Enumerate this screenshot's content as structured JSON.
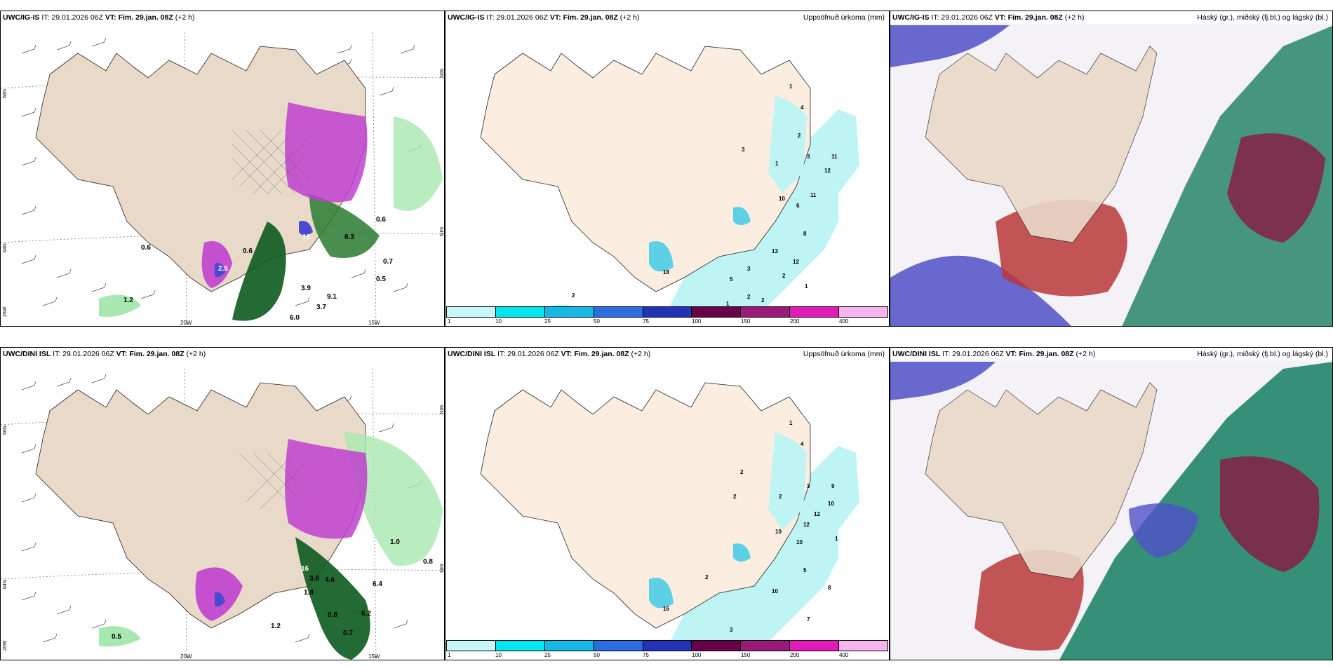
{
  "panels": {
    "a": {
      "model": "UWC/IG-IS",
      "it": "IT: 29.01.2026 06Z",
      "vt_label": "VT:",
      "vt": "Fim. 29.jan. 08Z",
      "lead": "(+2 h)",
      "right": ""
    },
    "b": {
      "model": "UWC/IG-IS",
      "it": "IT: 29.01.2026 06Z",
      "vt_label": "VT:",
      "vt": "Fim. 29.jan. 08Z",
      "lead": "(+2 h)",
      "right": "Uppsöfnuð úrkoma (mm)"
    },
    "c": {
      "model": "UWC/IG-IS",
      "it": "IT: 29.01.2026 06Z",
      "vt_label": "VT:",
      "vt": "Fim. 29.jan. 08Z",
      "lead": "(+2 h)",
      "right": "Háský (gr.), miðský (fj.bl.) og lágský (bl.)"
    },
    "d": {
      "model": "UWC/DINI ISL",
      "it": "IT: 29.01.2026 06Z",
      "vt_label": "VT:",
      "vt": "Fim. 29.jan. 08Z",
      "lead": "(+2 h)",
      "right": ""
    },
    "e": {
      "model": "UWC/DINI ISL",
      "it": "IT: 29.01.2026 06Z",
      "vt_label": "VT:",
      "vt": "Fim. 29.jan. 08Z",
      "lead": "(+2 h)",
      "right": "Uppsöfnuð úrkoma (mm)"
    },
    "f": {
      "model": "UWC/DINI ISL",
      "it": "IT: 29.01.2026 06Z",
      "vt_label": "VT:",
      "vt": "Fim. 29.jan. 08Z",
      "lead": "(+2 h)",
      "right": "Háský (gr.), miðský (fj.bl.) og lágský (bl.)"
    }
  },
  "geo_labels": {
    "lon_20w": "20W",
    "lon_15w": "15W",
    "lat_66n": "66N",
    "lat_64n": "64N",
    "lon_25w": "25W"
  },
  "colorbar": {
    "ticks": [
      "1",
      "10",
      "25",
      "50",
      "75",
      "100",
      "150",
      "200",
      "400"
    ],
    "colors": [
      "#c6f6f6",
      "#00e6f0",
      "#16b8e6",
      "#2c6ee0",
      "#2233b8",
      "#6a0048",
      "#9a1a7a",
      "#e21ab8",
      "#f5b4ec"
    ]
  },
  "precip_values_a": [
    "0.6",
    "0.6",
    "6.3",
    "3.9",
    "9.1",
    "3.7",
    "6.0",
    "0.6",
    "16",
    "2.5",
    "1.2",
    "0.7",
    "0.5"
  ],
  "precip_values_d": [
    "0.5",
    "1.2",
    "3.8",
    "4.6",
    "1.8",
    "6.2",
    "0.7",
    "0.8",
    "1.0",
    "0.8",
    "16",
    "6.4"
  ],
  "accum_values_b": [
    "1",
    "4",
    "2",
    "3",
    "11",
    "12",
    "10",
    "6",
    "11",
    "8",
    "13",
    "12",
    "2",
    "5",
    "3",
    "1",
    "2",
    "2",
    "2",
    "18",
    "1",
    "3",
    "1"
  ],
  "accum_values_e": [
    "1",
    "4",
    "2",
    "3",
    "9",
    "10",
    "12",
    "12",
    "2",
    "2",
    "10",
    "10",
    "1",
    "5",
    "8",
    "10",
    "7",
    "3",
    "2",
    "16"
  ],
  "colors": {
    "land": "#e9d9c9",
    "land_precip": "#fbeee0",
    "sea_precip": "#bff4f4",
    "green_light": "#a8e8b0",
    "green_dark": "#0c5a1e",
    "purple": "#c040d0",
    "blue": "#4a4ad0",
    "red_cloud": "#b8383a",
    "teal_cloud": "#2a8a70"
  }
}
